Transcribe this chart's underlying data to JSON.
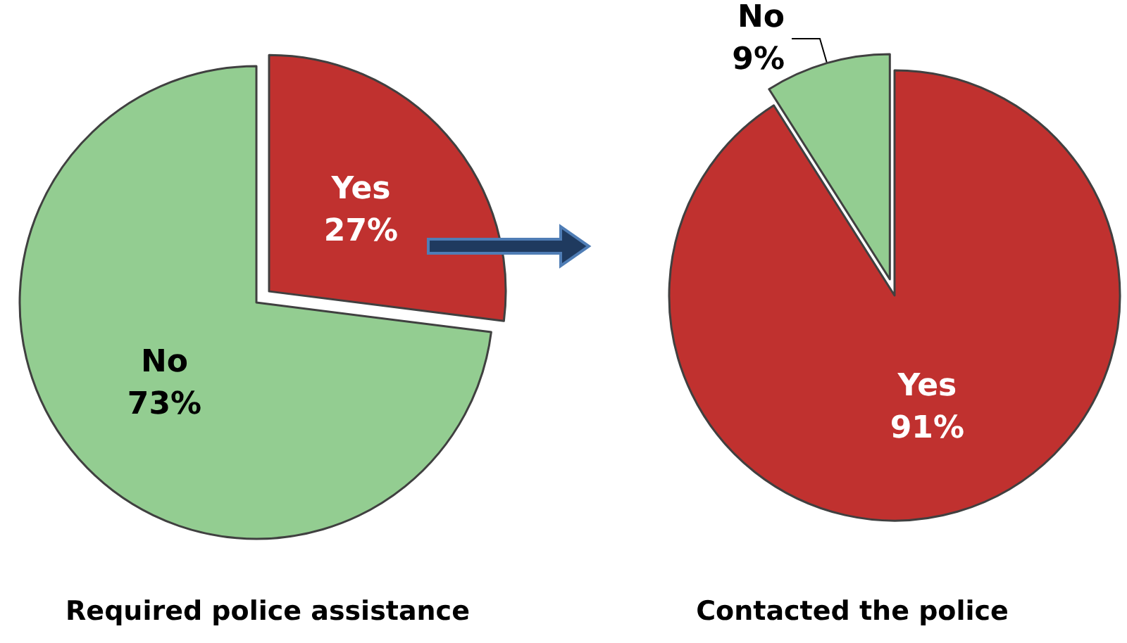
{
  "chart_data": [
    {
      "type": "pie",
      "title": "Required police assistance",
      "categories": [
        "Yes",
        "No"
      ],
      "values": [
        27,
        73
      ],
      "value_labels": [
        "27%",
        "73%"
      ],
      "colors": [
        "#c0312f",
        "#93cd91"
      ]
    },
    {
      "type": "pie",
      "title": "Contacted the police",
      "categories": [
        "Yes",
        "No"
      ],
      "values": [
        91,
        9
      ],
      "value_labels": [
        "91%",
        "9%"
      ],
      "colors": [
        "#c0312f",
        "#93cd91"
      ]
    }
  ]
}
